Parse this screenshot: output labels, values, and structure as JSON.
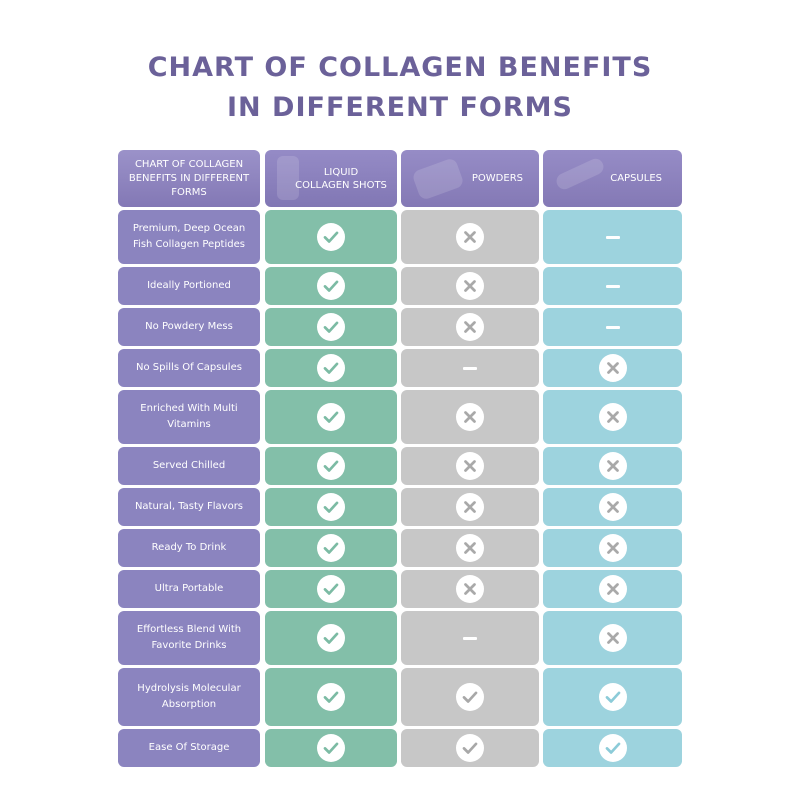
{
  "title_lines": [
    "CHART OF COLLAGEN BENEFITS",
    "IN DIFFERENT FORMS"
  ],
  "colors": {
    "title": "#6b6199",
    "feature": "#8b84bf",
    "liquid": "#83bfa9",
    "powders": "#c7c7c7",
    "capsules": "#9dd3de",
    "check_liquid": "#7cbba4",
    "check_powders": "#a8a8a8",
    "check_capsules": "#8ccbd8",
    "cross": "#a9a9a9"
  },
  "chart_data": {
    "type": "table",
    "header": {
      "label": "CHART OF COLLAGEN\nBENEFITS IN\nDIFFERENT FORMS",
      "columns": [
        "LIQUID\nCOLLAGEN SHOTS",
        "POWDERS",
        "CAPSULES"
      ]
    },
    "legend_values": {
      "yes": "check",
      "no": "cross",
      "na": "dash"
    },
    "rows": [
      {
        "feature": "Premium, Deep Ocean\nFish Collagen Peptides",
        "values": [
          "yes",
          "no",
          "na"
        ]
      },
      {
        "feature": "Ideally Portioned",
        "values": [
          "yes",
          "no",
          "na"
        ]
      },
      {
        "feature": "No Powdery Mess",
        "values": [
          "yes",
          "no",
          "na"
        ]
      },
      {
        "feature": "No Spills Of Capsules",
        "values": [
          "yes",
          "na",
          "no"
        ]
      },
      {
        "feature": "Enriched With Multi\nVitamins",
        "values": [
          "yes",
          "no",
          "no"
        ]
      },
      {
        "feature": "Served Chilled",
        "values": [
          "yes",
          "no",
          "no"
        ]
      },
      {
        "feature": "Natural, Tasty Flavors",
        "values": [
          "yes",
          "no",
          "no"
        ]
      },
      {
        "feature": "Ready To Drink",
        "values": [
          "yes",
          "no",
          "no"
        ]
      },
      {
        "feature": "Ultra Portable",
        "values": [
          "yes",
          "no",
          "no"
        ]
      },
      {
        "feature": "Effortless Blend With\nFavorite Drinks",
        "values": [
          "yes",
          "na",
          "no"
        ]
      },
      {
        "feature": "Hydrolysis Molecular\nAbsorption",
        "values": [
          "yes",
          "yes",
          "yes"
        ]
      },
      {
        "feature": "Ease Of Storage",
        "values": [
          "yes",
          "yes",
          "yes"
        ]
      }
    ]
  }
}
